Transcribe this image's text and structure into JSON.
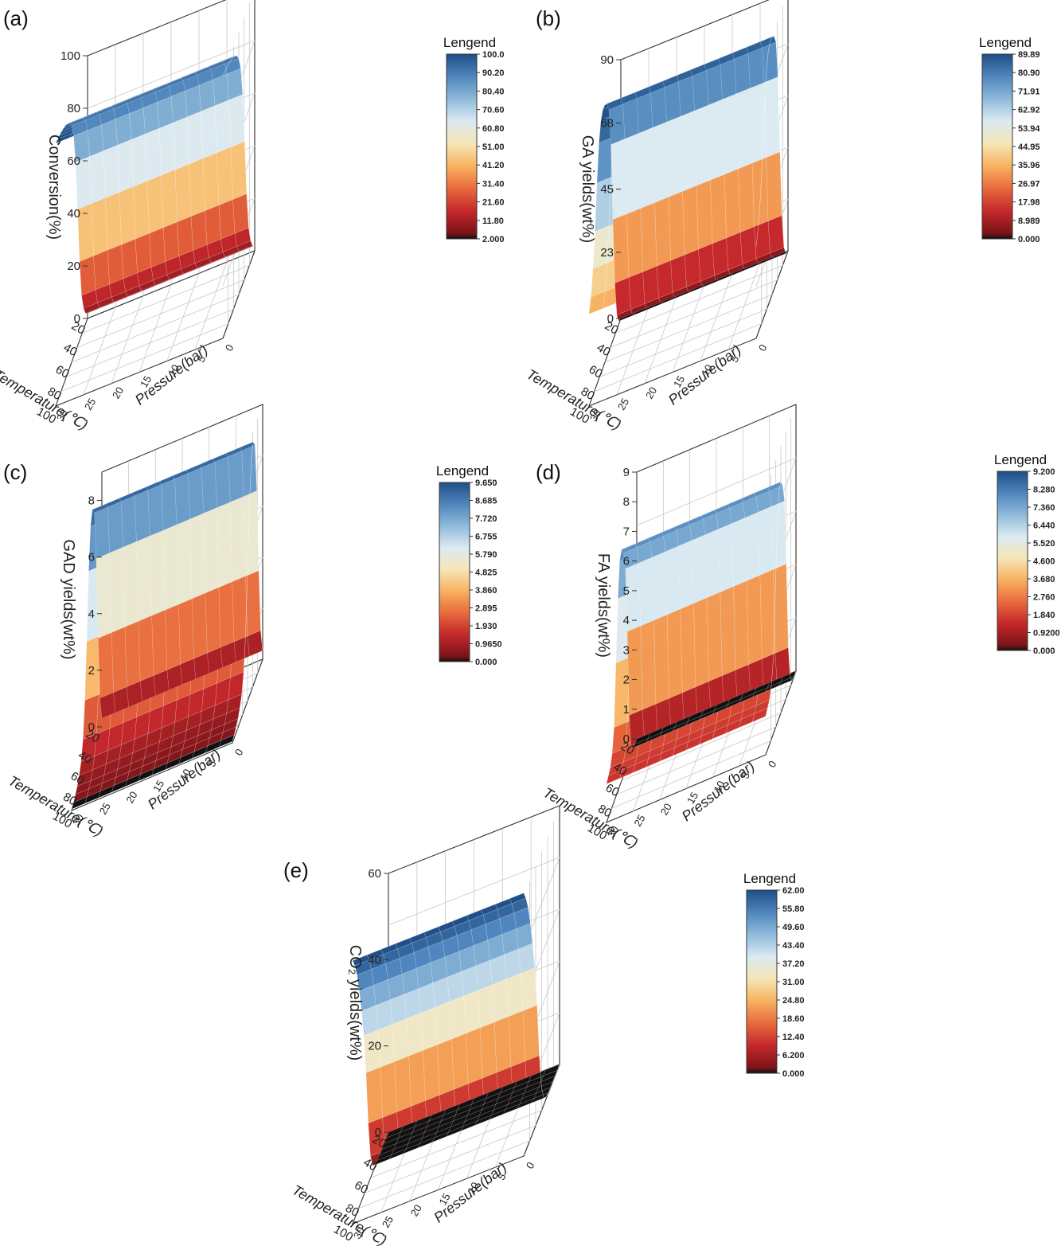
{
  "figure": {
    "colors": {
      "scale": [
        "#7a1418",
        "#c4282b",
        "#e86a3d",
        "#f7b25f",
        "#f6e6b6",
        "#dbeaf2",
        "#8fbad9",
        "#4f86bd",
        "#1f4e86"
      ],
      "bottom": "#111111",
      "axis": "#333333",
      "grid": "#c8c8c8",
      "mesh": "#ffffff"
    }
  },
  "chart_data": [
    {
      "type": "surface3d",
      "panel_label": "(a)",
      "ylabel": "Conversion(%)",
      "xlabel": "Temperature(℃)",
      "zlabel": "Pressure(bar)",
      "x_ticks": [
        "20",
        "40",
        "60",
        "80",
        "100"
      ],
      "p_ticks": [
        "0",
        "5",
        "10",
        "15",
        "20",
        "25",
        "30"
      ],
      "y_ticks": [
        "0",
        "20",
        "40",
        "60",
        "80",
        "100"
      ],
      "ylim": [
        0,
        100
      ],
      "legend_title": "Lengend",
      "legend_ticks": [
        "100.0",
        "90.20",
        "80.40",
        "70.60",
        "60.80",
        "51.00",
        "41.20",
        "31.40",
        "21.60",
        "11.80",
        "2.000"
      ],
      "profile_temperature": [
        20,
        25,
        30,
        35,
        40,
        45,
        50,
        55,
        60,
        65,
        70,
        75,
        80,
        85,
        90,
        95,
        100
      ],
      "profile_value": [
        2,
        4,
        8,
        15,
        30,
        52,
        72,
        84,
        90,
        93,
        95,
        96.5,
        97.5,
        98.3,
        99,
        99.5,
        100
      ],
      "pressure_range": [
        0,
        30
      ]
    },
    {
      "type": "surface3d",
      "panel_label": "(b)",
      "ylabel": "GA yields(wt%)",
      "xlabel": "Temperature(℃)",
      "zlabel": "Pressure(bar)",
      "x_ticks": [
        "20",
        "40",
        "60",
        "80",
        "100"
      ],
      "p_ticks": [
        "0",
        "5",
        "10",
        "15",
        "20",
        "25",
        "30"
      ],
      "y_ticks": [
        "0",
        "23",
        "45",
        "68",
        "90"
      ],
      "ylim": [
        0,
        90
      ],
      "legend_title": "Lengend",
      "legend_ticks": [
        "89.89",
        "80.90",
        "71.91",
        "62.92",
        "53.94",
        "44.95",
        "35.96",
        "26.97",
        "17.98",
        "8.989",
        "0.000"
      ],
      "profile_temperature": [
        20,
        25,
        30,
        35,
        40,
        45,
        50,
        55,
        60,
        65,
        70,
        75,
        80,
        85,
        90,
        95,
        100
      ],
      "profile_value": [
        0,
        1,
        5,
        18,
        42,
        70,
        84,
        88,
        89.5,
        89.9,
        88,
        82,
        70,
        55,
        44,
        36,
        32
      ],
      "pressure_range": [
        0,
        30
      ]
    },
    {
      "type": "surface3d",
      "panel_label": "(c)",
      "ylabel": "GAD yields(wt%)",
      "xlabel": "Temperature(℃)",
      "zlabel": "Pressure(bar)",
      "x_ticks": [
        "20",
        "40",
        "60",
        "80",
        "100"
      ],
      "p_ticks": [
        "0",
        "5",
        "10",
        "15",
        "20",
        "25",
        "30"
      ],
      "y_ticks": [
        "0",
        "2",
        "4",
        "6",
        "8"
      ],
      "ylim": [
        0,
        9
      ],
      "legend_title": "Lengend",
      "legend_ticks": [
        "9.650",
        "8.685",
        "7.720",
        "6.755",
        "5.790",
        "4.825",
        "3.860",
        "2.895",
        "1.930",
        "0.9650",
        "0.000"
      ],
      "profile_temperature": [
        20,
        25,
        30,
        35,
        40,
        45,
        50,
        55,
        60,
        65,
        70,
        75,
        80,
        85,
        90,
        95,
        100
      ],
      "profile_value": [
        0.3,
        1.2,
        3.5,
        6.5,
        8.3,
        8.6,
        8.2,
        6.8,
        4.5,
        2.6,
        1.4,
        0.8,
        0.5,
        0.3,
        0.2,
        0.1,
        0.05
      ],
      "pressure_range": [
        0,
        30
      ]
    },
    {
      "type": "surface3d",
      "panel_label": "(d)",
      "ylabel": "FA yields(wt%)",
      "xlabel": "Temperature(℃)",
      "zlabel": "Pressure(bar)",
      "x_ticks": [
        "20",
        "40",
        "60",
        "80",
        "100"
      ],
      "p_ticks": [
        "0",
        "5",
        "10",
        "15",
        "20",
        "25",
        "30"
      ],
      "y_ticks": [
        "0",
        "1",
        "2",
        "3",
        "4",
        "5",
        "6",
        "7",
        "8",
        "9"
      ],
      "ylim": [
        0,
        9
      ],
      "legend_title": "Lengend",
      "legend_ticks": [
        "9.200",
        "8.280",
        "7.360",
        "6.440",
        "5.520",
        "4.600",
        "3.680",
        "2.760",
        "1.840",
        "0.9200",
        "0.000"
      ],
      "profile_temperature": [
        20,
        25,
        30,
        35,
        40,
        45,
        50,
        55,
        60,
        65,
        70,
        75,
        80,
        85,
        90,
        95,
        100
      ],
      "profile_value": [
        0,
        0,
        0.05,
        0.3,
        1.5,
        4.5,
        6.8,
        7.5,
        7.8,
        7.6,
        6.5,
        4.5,
        2.5,
        1.8,
        1.5,
        1.4,
        1.3
      ],
      "pressure_range": [
        0,
        30
      ]
    },
    {
      "type": "surface3d",
      "panel_label": "(e)",
      "ylabel": "CO₂ yields(wt%)",
      "xlabel": "Temperature(℃)",
      "zlabel": "Pressure(bar)",
      "x_ticks": [
        "20",
        "40",
        "60",
        "80",
        "100"
      ],
      "p_ticks": [
        "0",
        "5",
        "10",
        "15",
        "20",
        "25",
        "30"
      ],
      "y_ticks": [
        "0",
        "20",
        "40",
        "60"
      ],
      "ylim": [
        0,
        60
      ],
      "legend_title": "Lengend",
      "legend_ticks": [
        "62.00",
        "55.80",
        "49.60",
        "43.40",
        "37.20",
        "31.00",
        "24.80",
        "18.60",
        "12.40",
        "6.200",
        "0.000"
      ],
      "profile_temperature": [
        20,
        25,
        30,
        35,
        40,
        45,
        50,
        55,
        60,
        65,
        70,
        75,
        80,
        85,
        90,
        95,
        100
      ],
      "profile_value": [
        0,
        0,
        0,
        0,
        0,
        0.1,
        0.4,
        1.5,
        5,
        14,
        27,
        37,
        44,
        50,
        55,
        58.5,
        61
      ],
      "pressure_range": [
        0,
        30
      ]
    }
  ]
}
